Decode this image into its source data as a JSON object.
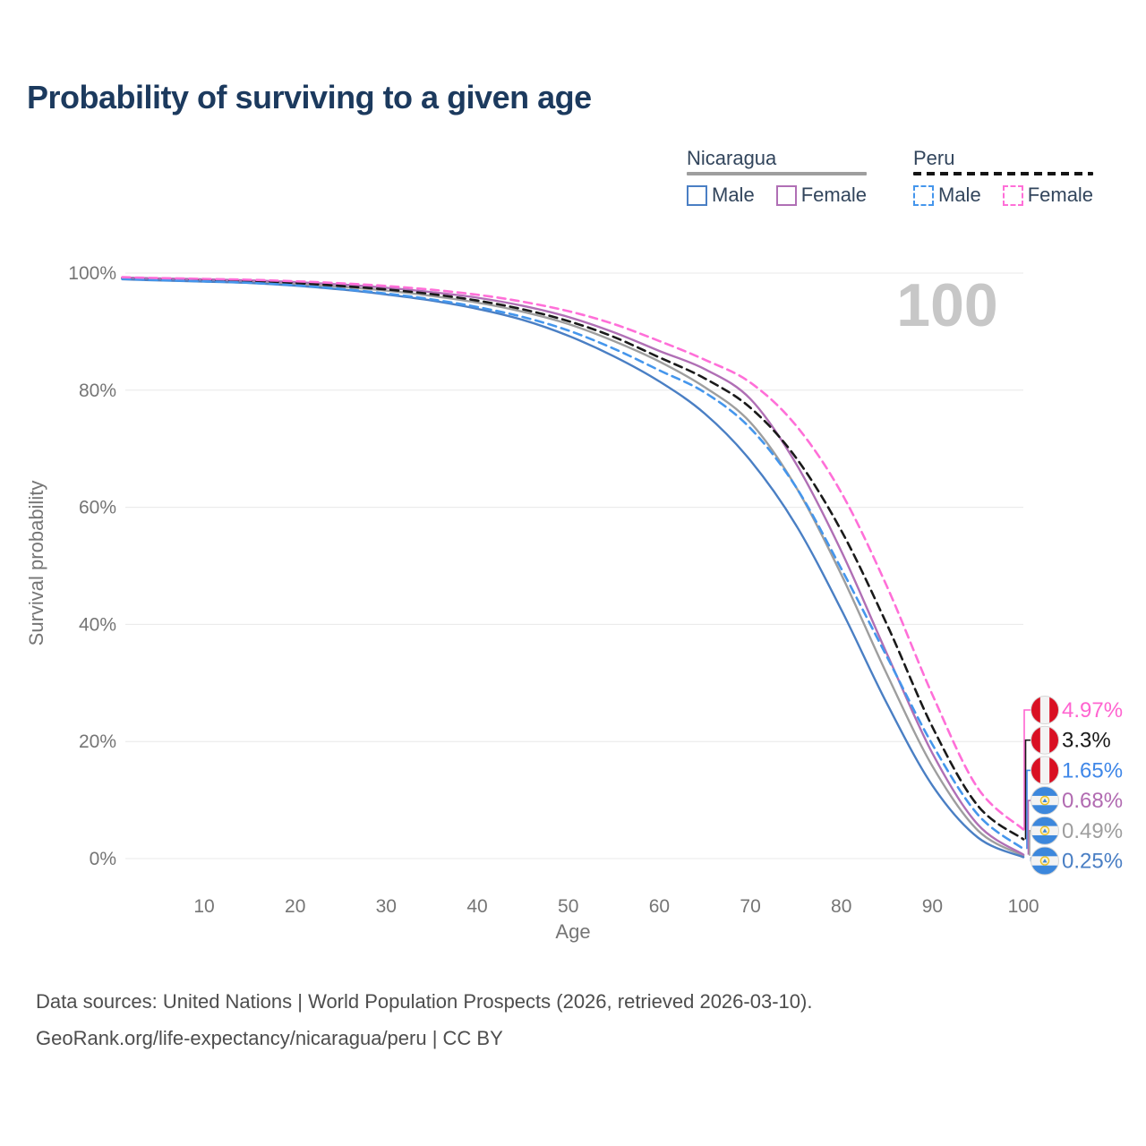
{
  "title": "Probability of surviving to a given age",
  "legend": {
    "groups": [
      {
        "label": "Nicaragua",
        "line_style": "solid",
        "line_color": "#9e9e9e",
        "items": [
          {
            "label": "Male",
            "color": "#4a7fc4",
            "dashed": false
          },
          {
            "label": "Female",
            "color": "#b06fb5",
            "dashed": false
          }
        ]
      },
      {
        "label": "Peru",
        "line_style": "dashed",
        "line_color": "#141414",
        "items": [
          {
            "label": "Male",
            "color": "#4596ec",
            "dashed": true
          },
          {
            "label": "Female",
            "color": "#ff6fd8",
            "dashed": true
          }
        ]
      }
    ]
  },
  "chart_data": {
    "type": "line",
    "title": "Probability of surviving to a given age",
    "xlabel": "Age",
    "ylabel": "Survival probability",
    "xlim": [
      1,
      100
    ],
    "ylim": [
      0,
      100
    ],
    "grid": "horizontal",
    "age_indicator_watermark": "100",
    "xticks": [
      10,
      20,
      30,
      40,
      50,
      60,
      70,
      80,
      90,
      100
    ],
    "yticks": [
      {
        "value": 0,
        "label": "0%"
      },
      {
        "value": 20,
        "label": "20%"
      },
      {
        "value": 40,
        "label": "40%"
      },
      {
        "value": 60,
        "label": "60%"
      },
      {
        "value": 80,
        "label": "80%"
      },
      {
        "value": 100,
        "label": "100%"
      }
    ],
    "ages": [
      1,
      5,
      10,
      15,
      20,
      25,
      30,
      35,
      40,
      45,
      50,
      55,
      60,
      65,
      70,
      75,
      80,
      85,
      90,
      95,
      100
    ],
    "series": [
      {
        "name": "Peru Female",
        "country": "peru",
        "dashed": true,
        "color": "#ff6fd8",
        "end_label": "4.97%",
        "end_label_color": "#ff64d0",
        "values": [
          99.3,
          99.15,
          99.0,
          98.85,
          98.6,
          98.25,
          97.8,
          97.15,
          96.3,
          95.1,
          93.5,
          91.3,
          88.4,
          85.2,
          81.3,
          74.0,
          62.5,
          46.5,
          28.0,
          12.0,
          4.97
        ]
      },
      {
        "name": "Peru",
        "country": "peru",
        "dashed": true,
        "color": "#1a1a1a",
        "end_label": "3.3%",
        "end_label_color": "#1a1a1a",
        "values": [
          99.15,
          99.0,
          98.85,
          98.65,
          98.3,
          97.8,
          97.2,
          96.4,
          95.3,
          93.8,
          91.8,
          89.1,
          85.6,
          82.0,
          77.0,
          68.5,
          56.0,
          40.0,
          22.5,
          9.0,
          3.3
        ]
      },
      {
        "name": "Peru Male",
        "country": "peru",
        "dashed": true,
        "color": "#4596ec",
        "end_label": "1.65%",
        "end_label_color": "#3f87e8",
        "values": [
          99.0,
          98.8,
          98.6,
          98.35,
          97.9,
          97.3,
          96.5,
          95.5,
          94.2,
          92.5,
          90.2,
          87.1,
          83.4,
          79.6,
          73.5,
          63.5,
          49.5,
          34.5,
          19.5,
          7.5,
          1.65
        ]
      },
      {
        "name": "Nicaragua Female",
        "country": "nicaragua",
        "dashed": false,
        "color": "#b06fb5",
        "end_label": "0.68%",
        "end_label_color": "#b16bb1",
        "values": [
          99.25,
          99.1,
          98.95,
          98.75,
          98.45,
          98.05,
          97.5,
          96.75,
          95.8,
          94.4,
          92.5,
          89.9,
          86.7,
          83.6,
          78.5,
          67.5,
          52.5,
          35.0,
          18.0,
          5.8,
          0.68
        ]
      },
      {
        "name": "Nicaragua",
        "country": "nicaragua",
        "dashed": false,
        "color": "#9e9e9e",
        "end_label": "0.49%",
        "end_label_color": "#9e9e9e",
        "values": [
          99.1,
          98.95,
          98.8,
          98.55,
          98.15,
          97.65,
          97.0,
          96.1,
          94.95,
          93.4,
          91.3,
          88.4,
          84.9,
          80.5,
          74.5,
          63.5,
          48.5,
          31.5,
          15.8,
          4.8,
          0.49
        ]
      },
      {
        "name": "Nicaragua Male",
        "country": "nicaragua",
        "dashed": false,
        "color": "#4a7fc4",
        "end_label": "0.25%",
        "end_label_color": "#4a7fc4",
        "values": [
          98.95,
          98.75,
          98.55,
          98.3,
          97.85,
          97.2,
          96.35,
          95.3,
          93.9,
          92.0,
          89.3,
          85.8,
          81.5,
          76.0,
          68.0,
          57.0,
          42.5,
          26.5,
          12.5,
          3.6,
          0.25
        ]
      }
    ]
  },
  "flag_colors": {
    "peru_red": "#d91023",
    "nicaragua_blue": "#3c87dc",
    "flag_ring": "#d6d6d6",
    "emblem_gold": "#ecc225",
    "emblem_fill": "#fdf3cf"
  },
  "footer": {
    "line1": "Data sources: United Nations | World Population Prospects (2026, retrieved 2026-03-10).",
    "line2": "GeoRank.org/life-expectancy/nicaragua/peru | CC BY"
  }
}
